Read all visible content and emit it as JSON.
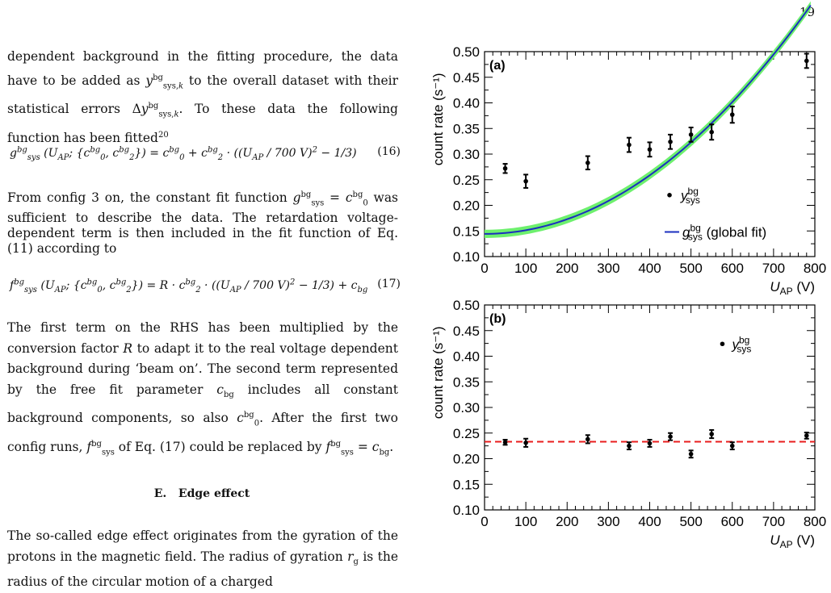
{
  "page_number": "19",
  "paragraphs": [
    "dependent background in the fitting procedure, the data have to be added as y^bg_sys,k to the overall dataset with their statistical errors Δy^bg_sys,k. To these data the following function has been fitted²⁰",
    "From config 3 on, the constant fit function g^bg_sys = c^bg_0 was sufficient to describe the data. The retardation voltage-dependent term is then included in the fit function of Eq. (11) according to",
    "The first term on the RHS has been multiplied by the conversion factor R to adapt it to the real voltage dependent background during ‘beam on’. The second term represented by the free fit parameter c_bg includes all constant background components, so also c^bg_0. After the first two config runs, f^bg_sys of Eq. (17) could be replaced by f^bg_sys = c_bg.",
    "The so-called edge effect originates from the gyration of the protons in the magnetic field. The radius of gyration r_g is the radius of the circular motion of a charged"
  ],
  "equations": [
    {
      "text": "g^bg_sys (U_AP; {c^bg_0, c^bg_2}) = c^bg_0 + c^bg_2 · ((U_AP / 700 V)² − 1/3)",
      "number": "(16)"
    },
    {
      "text": "f^bg_sys (U_AP; {c^bg_0, c^bg_2}) = R · c^bg_2 · ((U_AP / 700 V)² − 1/3) + c_bg",
      "number": "(17)"
    }
  ],
  "section_heading": "E.   Edge effect",
  "chart_data": [
    {
      "type": "scatter",
      "panel_label": "(a)",
      "ylabel": "count rate (s⁻¹)",
      "xlabel": "U_AP (V)",
      "xlim": [
        0,
        800
      ],
      "ylim": [
        0.1,
        0.5
      ],
      "xticks": [
        0,
        100,
        200,
        300,
        400,
        500,
        600,
        700,
        800
      ],
      "yticks": [
        0.1,
        0.15,
        0.2,
        0.25,
        0.3,
        0.35,
        0.4,
        0.45,
        0.5
      ],
      "points": [
        {
          "x": 50,
          "y": 0.272,
          "err": 0.009
        },
        {
          "x": 100,
          "y": 0.247,
          "err": 0.013
        },
        {
          "x": 250,
          "y": 0.283,
          "err": 0.013
        },
        {
          "x": 350,
          "y": 0.318,
          "err": 0.014
        },
        {
          "x": 400,
          "y": 0.309,
          "err": 0.014
        },
        {
          "x": 450,
          "y": 0.324,
          "err": 0.014
        },
        {
          "x": 500,
          "y": 0.338,
          "err": 0.014
        },
        {
          "x": 550,
          "y": 0.343,
          "err": 0.015
        },
        {
          "x": 600,
          "y": 0.377,
          "err": 0.016
        },
        {
          "x": 780,
          "y": 0.482,
          "err": 0.014
        }
      ],
      "fit": {
        "type": "quadratic",
        "c0": 0.261,
        "c2": 0.3502,
        "band": 0.008,
        "color": "#1b2fbf",
        "band_color": "#6ef06e"
      },
      "legend": [
        {
          "marker": "point",
          "label": "y^bg_sys"
        },
        {
          "marker": "line",
          "label": "g^bg_sys (global fit)"
        }
      ],
      "legend_placement": "bottom-right"
    },
    {
      "type": "scatter",
      "panel_label": "(b)",
      "ylabel": "count rate (s⁻¹)",
      "xlabel": "U_AP (V)",
      "xlim": [
        0,
        800
      ],
      "ylim": [
        0.1,
        0.5
      ],
      "xticks": [
        0,
        100,
        200,
        300,
        400,
        500,
        600,
        700,
        800
      ],
      "yticks": [
        0.1,
        0.15,
        0.2,
        0.25,
        0.3,
        0.35,
        0.4,
        0.45,
        0.5
      ],
      "points": [
        {
          "x": 50,
          "y": 0.232,
          "err": 0.005
        },
        {
          "x": 100,
          "y": 0.231,
          "err": 0.008
        },
        {
          "x": 250,
          "y": 0.238,
          "err": 0.008
        },
        {
          "x": 350,
          "y": 0.225,
          "err": 0.007
        },
        {
          "x": 400,
          "y": 0.23,
          "err": 0.007
        },
        {
          "x": 450,
          "y": 0.243,
          "err": 0.007
        },
        {
          "x": 500,
          "y": 0.209,
          "err": 0.007
        },
        {
          "x": 550,
          "y": 0.248,
          "err": 0.008
        },
        {
          "x": 600,
          "y": 0.225,
          "err": 0.007
        },
        {
          "x": 780,
          "y": 0.245,
          "err": 0.006
        }
      ],
      "constant": {
        "value": 0.233,
        "color": "#e81c1c"
      },
      "legend": [
        {
          "marker": "point",
          "label": "y^bg_sys"
        }
      ],
      "legend_placement": "top-right"
    }
  ]
}
